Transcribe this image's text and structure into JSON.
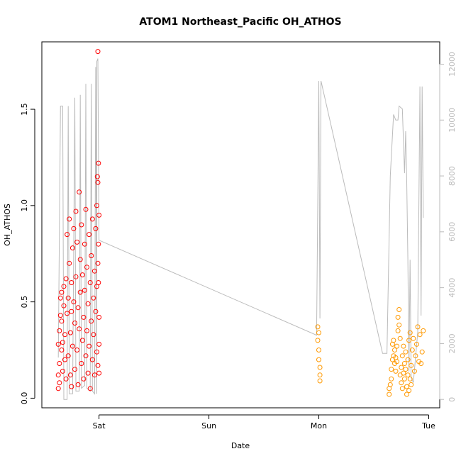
{
  "chart_data": {
    "type": "scatter",
    "title": "ATOM1 Northeast_Pacific OH_ATHOS",
    "xlabel": "Date",
    "ylabel": "OH_ATHOS",
    "x_ticks": [
      "Sat",
      "Sun",
      "Mon",
      "Tue"
    ],
    "x_tick_positions_days": [
      1,
      2,
      3,
      4
    ],
    "xlim_days": [
      0.48,
      4.1
    ],
    "ylim": [
      -0.05,
      1.85
    ],
    "y_ticks": [
      0.0,
      0.5,
      1.0,
      1.5
    ],
    "y_tick_labels": [
      "0.0",
      "0.5",
      "1.0",
      "1.5"
    ],
    "y2lim": [
      -300,
      12800
    ],
    "y2_ticks": [
      0,
      2000,
      4000,
      6000,
      8000,
      10000,
      12000
    ],
    "y2_tick_labels": [
      "0",
      "2000",
      "4000",
      "6000",
      "8000",
      "10000",
      "12000"
    ],
    "grid": false,
    "colors": {
      "series_red": "#ff0000",
      "series_orange": "#ff9900",
      "altitude_line": "#bbbbbb",
      "axis": "#000000",
      "right_axis": "#bbbbbb"
    },
    "series": [
      {
        "color": "#ff0000",
        "points": [
          [
            0.63,
            0.05
          ],
          [
            0.63,
            0.12
          ],
          [
            0.63,
            0.28
          ],
          [
            0.64,
            0.08
          ],
          [
            0.64,
            0.18
          ],
          [
            0.64,
            0.35
          ],
          [
            0.65,
            0.43
          ],
          [
            0.65,
            0.52
          ],
          [
            0.66,
            0.25
          ],
          [
            0.66,
            0.4
          ],
          [
            0.66,
            0.55
          ],
          [
            0.67,
            0.14
          ],
          [
            0.67,
            0.29
          ],
          [
            0.68,
            0.48
          ],
          [
            0.68,
            0.58
          ],
          [
            0.69,
            0.2
          ],
          [
            0.69,
            0.33
          ],
          [
            0.7,
            0.62
          ],
          [
            0.7,
            0.1
          ],
          [
            0.71,
            0.44
          ],
          [
            0.71,
            0.85
          ],
          [
            0.72,
            0.22
          ],
          [
            0.72,
            0.52
          ],
          [
            0.73,
            0.7
          ],
          [
            0.73,
            0.93
          ],
          [
            0.74,
            0.12
          ],
          [
            0.74,
            0.34
          ],
          [
            0.75,
            0.06
          ],
          [
            0.75,
            0.45
          ],
          [
            0.75,
            0.6
          ],
          [
            0.76,
            0.27
          ],
          [
            0.76,
            0.78
          ],
          [
            0.77,
            0.5
          ],
          [
            0.77,
            0.88
          ],
          [
            0.78,
            0.15
          ],
          [
            0.78,
            0.39
          ],
          [
            0.79,
            0.63
          ],
          [
            0.79,
            0.97
          ],
          [
            0.8,
            0.25
          ],
          [
            0.8,
            0.81
          ],
          [
            0.81,
            0.07
          ],
          [
            0.81,
            0.47
          ],
          [
            0.82,
            1.07
          ],
          [
            0.82,
            0.36
          ],
          [
            0.83,
            0.55
          ],
          [
            0.83,
            0.72
          ],
          [
            0.84,
            0.18
          ],
          [
            0.84,
            0.9
          ],
          [
            0.85,
            0.3
          ],
          [
            0.85,
            0.64
          ],
          [
            0.86,
            0.1
          ],
          [
            0.86,
            0.42
          ],
          [
            0.87,
            0.8
          ],
          [
            0.87,
            0.56
          ],
          [
            0.88,
            0.22
          ],
          [
            0.88,
            0.98
          ],
          [
            0.89,
            0.35
          ],
          [
            0.89,
            0.68
          ],
          [
            0.9,
            0.13
          ],
          [
            0.9,
            0.49
          ],
          [
            0.91,
            0.85
          ],
          [
            0.91,
            0.27
          ],
          [
            0.92,
            0.6
          ],
          [
            0.92,
            0.05
          ],
          [
            0.93,
            0.4
          ],
          [
            0.93,
            0.74
          ],
          [
            0.94,
            0.93
          ],
          [
            0.94,
            0.2
          ],
          [
            0.95,
            0.52
          ],
          [
            0.95,
            0.33
          ],
          [
            0.96,
            0.66
          ],
          [
            0.96,
            0.12
          ],
          [
            0.97,
            0.88
          ],
          [
            0.97,
            0.45
          ],
          [
            0.98,
            1.0
          ],
          [
            0.98,
            0.24
          ],
          [
            0.98,
            0.58
          ],
          [
            0.99,
            0.7
          ],
          [
            0.99,
            0.17
          ],
          [
            0.99,
            1.12
          ],
          [
            0.985,
            1.15
          ],
          [
            0.99,
            1.8
          ],
          [
            0.995,
            1.22
          ],
          [
            0.995,
            0.8
          ],
          [
            1.0,
            0.95
          ],
          [
            1.0,
            0.42
          ],
          [
            1.0,
            0.13
          ],
          [
            1.0,
            0.28
          ],
          [
            0.995,
            0.6
          ]
        ]
      },
      {
        "color": "#ff9900",
        "points": [
          [
            2.99,
            0.37
          ],
          [
            2.99,
            0.3
          ],
          [
            3.0,
            0.34
          ],
          [
            3.0,
            0.25
          ],
          [
            3.0,
            0.2
          ],
          [
            3.01,
            0.16
          ],
          [
            3.01,
            0.12
          ],
          [
            3.01,
            0.09
          ],
          [
            3.64,
            0.02
          ],
          [
            3.64,
            0.05
          ],
          [
            3.65,
            0.07
          ],
          [
            3.66,
            0.15
          ],
          [
            3.66,
            0.1
          ],
          [
            3.67,
            0.2
          ],
          [
            3.67,
            0.28
          ],
          [
            3.68,
            0.3
          ],
          [
            3.68,
            0.22
          ],
          [
            3.69,
            0.18
          ],
          [
            3.69,
            0.25
          ],
          [
            3.7,
            0.14
          ],
          [
            3.7,
            0.21
          ],
          [
            3.71,
            0.27
          ],
          [
            3.71,
            0.19
          ],
          [
            3.72,
            0.35
          ],
          [
            3.72,
            0.42
          ],
          [
            3.73,
            0.46
          ],
          [
            3.73,
            0.38
          ],
          [
            3.74,
            0.31
          ],
          [
            3.74,
            0.12
          ],
          [
            3.75,
            0.08
          ],
          [
            3.75,
            0.16
          ],
          [
            3.76,
            0.05
          ],
          [
            3.76,
            0.22
          ],
          [
            3.77,
            0.13
          ],
          [
            3.77,
            0.27
          ],
          [
            3.78,
            0.18
          ],
          [
            3.78,
            0.1
          ],
          [
            3.79,
            0.24
          ],
          [
            3.79,
            0.15
          ],
          [
            3.8,
            0.06
          ],
          [
            3.8,
            0.02
          ],
          [
            3.81,
            0.12
          ],
          [
            3.81,
            0.2
          ],
          [
            3.82,
            0.04
          ],
          [
            3.82,
            0.3
          ],
          [
            3.83,
            0.1
          ],
          [
            3.83,
            0.34
          ],
          [
            3.84,
            0.07
          ],
          [
            3.84,
            0.17
          ],
          [
            3.85,
            0.25
          ],
          [
            3.86,
            0.31
          ],
          [
            3.87,
            0.14
          ],
          [
            3.88,
            0.22
          ],
          [
            3.89,
            0.28
          ],
          [
            3.9,
            0.37
          ],
          [
            3.91,
            0.19
          ],
          [
            3.92,
            0.33
          ],
          [
            3.93,
            0.18
          ],
          [
            3.94,
            0.24
          ],
          [
            3.95,
            0.35
          ]
        ]
      }
    ],
    "altitude_line": [
      [
        0.63,
        1500
      ],
      [
        0.65,
        10500
      ],
      [
        0.67,
        10500
      ],
      [
        0.68,
        0
      ],
      [
        0.71,
        0
      ],
      [
        0.72,
        10500
      ],
      [
        0.73,
        200
      ],
      [
        0.76,
        200
      ],
      [
        0.78,
        10800
      ],
      [
        0.79,
        300
      ],
      [
        0.82,
        300
      ],
      [
        0.83,
        10900
      ],
      [
        0.84,
        400
      ],
      [
        0.87,
        500
      ],
      [
        0.88,
        11300
      ],
      [
        0.89,
        400
      ],
      [
        0.92,
        300
      ],
      [
        0.93,
        11300
      ],
      [
        0.94,
        300
      ],
      [
        0.96,
        200
      ],
      [
        0.97,
        11900
      ],
      [
        0.98,
        200
      ],
      [
        0.98,
        12100
      ],
      [
        0.99,
        12200
      ],
      [
        1.0,
        5700
      ],
      [
        2.98,
        2300
      ],
      [
        3.0,
        11400
      ],
      [
        3.01,
        2900
      ],
      [
        3.02,
        11400
      ],
      [
        3.58,
        1650
      ],
      [
        3.62,
        1650
      ],
      [
        3.65,
        8000
      ],
      [
        3.68,
        10200
      ],
      [
        3.7,
        10000
      ],
      [
        3.72,
        10000
      ],
      [
        3.73,
        10500
      ],
      [
        3.76,
        10400
      ],
      [
        3.78,
        8100
      ],
      [
        3.79,
        9600
      ],
      [
        3.8,
        7800
      ],
      [
        3.81,
        5000
      ],
      [
        3.82,
        1000
      ],
      [
        3.83,
        5000
      ],
      [
        3.84,
        800
      ],
      [
        3.86,
        600
      ],
      [
        3.88,
        1500
      ],
      [
        3.9,
        2400
      ],
      [
        3.92,
        11200
      ],
      [
        3.93,
        3000
      ],
      [
        3.94,
        11200
      ],
      [
        3.95,
        6500
      ]
    ]
  }
}
